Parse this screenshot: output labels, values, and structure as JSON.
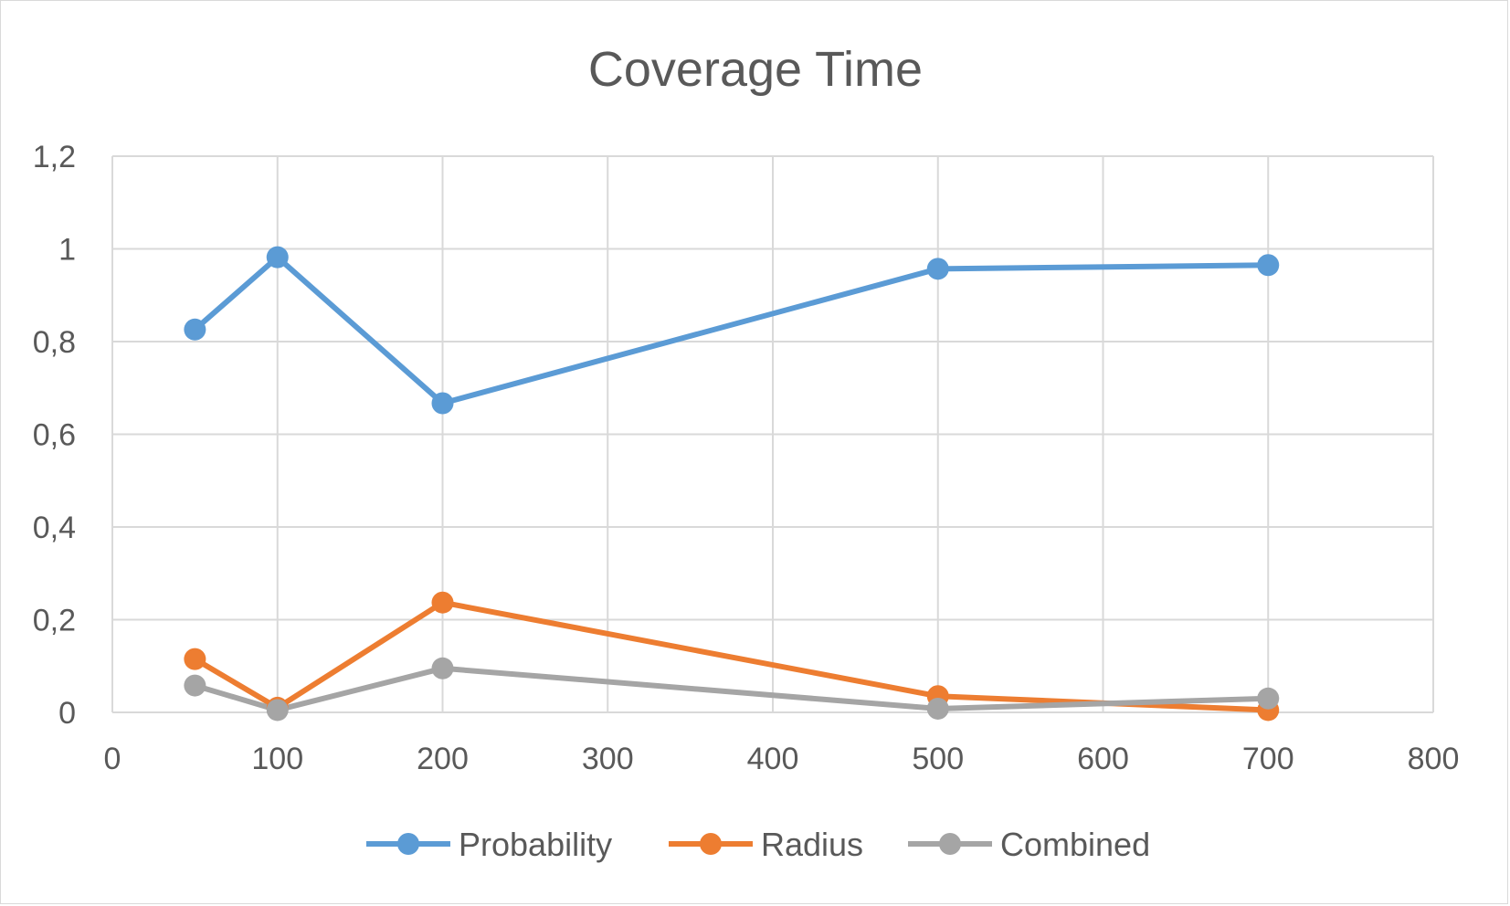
{
  "chart_data": {
    "type": "scatter",
    "title": "Coverage Time",
    "xlabel": "",
    "ylabel": "",
    "xlim": [
      0,
      800
    ],
    "ylim": [
      0,
      1.2
    ],
    "x_ticks": [
      "0",
      "100",
      "200",
      "300",
      "400",
      "500",
      "600",
      "700",
      "800"
    ],
    "y_ticks": [
      "0",
      "0,2",
      "0,4",
      "0,6",
      "0,8",
      "1",
      "1,2"
    ],
    "grid": true,
    "legend_position": "bottom",
    "series": [
      {
        "name": "Probability",
        "color": "#5b9bd5",
        "x": [
          50,
          100,
          200,
          500,
          700
        ],
        "y": [
          0.826,
          0.982,
          0.667,
          0.957,
          0.965
        ]
      },
      {
        "name": "Radius",
        "color": "#ed7d31",
        "x": [
          50,
          100,
          200,
          500,
          700
        ],
        "y": [
          0.115,
          0.01,
          0.237,
          0.035,
          0.005
        ]
      },
      {
        "name": "Combined",
        "color": "#a5a5a5",
        "x": [
          50,
          100,
          200,
          500,
          700
        ],
        "y": [
          0.058,
          0.005,
          0.095,
          0.008,
          0.03
        ]
      }
    ]
  }
}
